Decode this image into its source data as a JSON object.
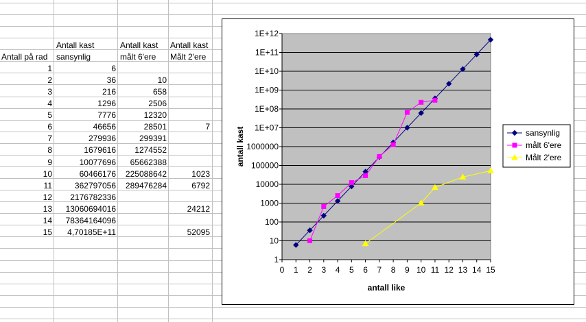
{
  "sheet": {
    "headers_row1": [
      "Antall kast",
      "Antall kast",
      "Antall kast"
    ],
    "headers_row2": [
      "Antall på rad",
      "sansynlig",
      "målt 6'ere",
      "Målt 2'ere"
    ],
    "rows": [
      [
        "1",
        "6",
        "",
        ""
      ],
      [
        "2",
        "36",
        "10",
        ""
      ],
      [
        "3",
        "216",
        "658",
        ""
      ],
      [
        "4",
        "1296",
        "2506",
        ""
      ],
      [
        "5",
        "7776",
        "12320",
        ""
      ],
      [
        "6",
        "46656",
        "28501",
        "7"
      ],
      [
        "7",
        "279936",
        "299391",
        ""
      ],
      [
        "8",
        "1679616",
        "1274552",
        ""
      ],
      [
        "9",
        "10077696",
        "65662388",
        ""
      ],
      [
        "10",
        "60466176",
        "225088642",
        "1023"
      ],
      [
        "11",
        "362797056",
        "289476284",
        "6792"
      ],
      [
        "12",
        "2176782336",
        "",
        ""
      ],
      [
        "13",
        "13060694016",
        "",
        "24212"
      ],
      [
        "14",
        "78364164096",
        "",
        ""
      ],
      [
        "15",
        "4,70185E+11",
        "",
        "52095"
      ]
    ]
  },
  "chart_data": {
    "type": "line",
    "xlabel": "antall like",
    "ylabel": "antall kast",
    "x_ticks": [
      "0",
      "1",
      "2",
      "3",
      "4",
      "5",
      "6",
      "7",
      "8",
      "9",
      "10",
      "11",
      "12",
      "13",
      "14",
      "15"
    ],
    "y_ticks": [
      "1",
      "10",
      "100",
      "1000",
      "10000",
      "100000",
      "1000000",
      "1E+07",
      "1E+08",
      "1E+09",
      "1E+10",
      "1E+11",
      "1E+12"
    ],
    "y_log_scale": true,
    "xlim": [
      0,
      15
    ],
    "ylim": [
      1,
      1000000000000
    ],
    "grid": true,
    "legend_position": "right",
    "plot_bg": "#c0c0c0",
    "series": [
      {
        "name": "sansynlig",
        "color": "#000080",
        "marker": "diamond",
        "x": [
          1,
          2,
          3,
          4,
          5,
          6,
          7,
          8,
          9,
          10,
          11,
          12,
          13,
          14,
          15
        ],
        "y": [
          6,
          36,
          216,
          1296,
          7776,
          46656,
          279936,
          1679616,
          10077696,
          60466176,
          362797056,
          2176782336,
          13060694016,
          78364164096,
          470185000000
        ]
      },
      {
        "name": "målt 6'ere",
        "color": "#ff00ff",
        "marker": "square",
        "x": [
          2,
          3,
          4,
          5,
          6,
          7,
          8,
          9,
          10,
          11
        ],
        "y": [
          10,
          658,
          2506,
          12320,
          28501,
          299391,
          1274552,
          65662388,
          225088642,
          289476284
        ]
      },
      {
        "name": "Målt 2'ere",
        "color": "#ffff00",
        "marker": "triangle",
        "x": [
          6,
          10,
          11,
          13,
          15
        ],
        "y": [
          7,
          1023,
          6792,
          24212,
          52095
        ]
      }
    ]
  }
}
